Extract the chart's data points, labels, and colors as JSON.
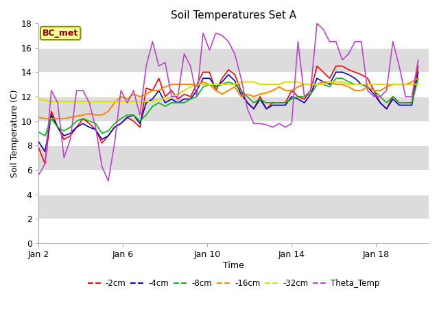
{
  "title": "Soil Temperatures Set A",
  "xlabel": "Time",
  "ylabel": "Soil Temperature (C)",
  "ylim": [
    0,
    18
  ],
  "yticks": [
    0,
    2,
    4,
    6,
    8,
    10,
    12,
    14,
    16,
    18
  ],
  "xtick_labels": [
    "Jan 2",
    "Jan 6",
    "Jan 10",
    "Jan 14",
    "Jan 18"
  ],
  "xtick_positions": [
    1,
    5,
    9,
    13,
    17
  ],
  "annotation_text": "BC_met",
  "annotation_color": "#8B0000",
  "annotation_bg": "#FFFF99",
  "annotation_edge": "#8B8B00",
  "fig_bg": "#FFFFFF",
  "plot_bg_light": "#FFFFFF",
  "plot_bg_dark": "#DCDCDC",
  "series_colors": {
    "-2cm": "#FF0000",
    "-4cm": "#0000CC",
    "-8cm": "#00BB00",
    "-16cm": "#FF8C00",
    "-32cm": "#DDDD00",
    "Theta_Temp": "#BB44CC"
  },
  "time_days": [
    1,
    1.3,
    1.6,
    1.9,
    2.2,
    2.5,
    2.8,
    3.1,
    3.4,
    3.7,
    4.0,
    4.3,
    4.6,
    4.9,
    5.2,
    5.5,
    5.8,
    6.1,
    6.4,
    6.7,
    7.0,
    7.3,
    7.6,
    7.9,
    8.2,
    8.5,
    8.8,
    9.1,
    9.4,
    9.7,
    10.0,
    10.3,
    10.6,
    10.9,
    11.2,
    11.5,
    11.8,
    12.1,
    12.4,
    12.7,
    13.0,
    13.3,
    13.6,
    13.9,
    14.2,
    14.5,
    14.8,
    15.1,
    15.4,
    15.7,
    16.0,
    16.3,
    16.6,
    16.9,
    17.2,
    17.5,
    17.8,
    18.1,
    18.4,
    18.7,
    19.0
  ],
  "cm2": [
    7.8,
    6.5,
    10.8,
    9.5,
    8.5,
    8.8,
    9.5,
    10.2,
    9.8,
    9.3,
    8.2,
    8.8,
    9.5,
    9.8,
    10.3,
    10.0,
    9.5,
    12.7,
    12.5,
    13.5,
    12.0,
    12.5,
    11.8,
    12.2,
    12.0,
    13.0,
    14.0,
    14.0,
    12.5,
    13.5,
    14.2,
    13.8,
    12.5,
    11.5,
    11.0,
    12.0,
    11.0,
    11.5,
    11.5,
    11.5,
    12.5,
    12.0,
    11.8,
    12.5,
    14.5,
    14.0,
    13.5,
    14.5,
    14.5,
    14.2,
    14.0,
    13.8,
    13.5,
    12.5,
    11.5,
    11.0,
    12.0,
    11.5,
    11.5,
    11.5,
    14.5
  ],
  "cm4": [
    8.3,
    7.5,
    10.5,
    9.5,
    8.8,
    9.0,
    9.5,
    9.8,
    9.5,
    9.3,
    8.5,
    8.8,
    9.5,
    9.8,
    10.3,
    10.5,
    9.8,
    11.5,
    11.8,
    12.5,
    11.5,
    11.8,
    11.5,
    11.8,
    11.8,
    12.5,
    13.5,
    13.5,
    12.8,
    13.2,
    13.8,
    13.3,
    12.2,
    11.5,
    11.0,
    11.8,
    11.0,
    11.3,
    11.3,
    11.3,
    12.0,
    11.8,
    11.5,
    12.2,
    13.5,
    13.2,
    13.0,
    14.0,
    14.0,
    13.8,
    13.5,
    13.0,
    12.8,
    12.2,
    11.5,
    11.0,
    11.8,
    11.3,
    11.3,
    11.3,
    14.0
  ],
  "cm8": [
    9.1,
    8.8,
    10.2,
    9.5,
    9.2,
    9.5,
    10.0,
    10.2,
    10.0,
    9.8,
    9.0,
    9.2,
    9.8,
    10.2,
    10.5,
    10.5,
    10.0,
    10.5,
    11.2,
    11.5,
    11.2,
    11.5,
    11.5,
    11.5,
    11.8,
    12.0,
    12.8,
    13.0,
    12.8,
    13.0,
    13.2,
    13.0,
    12.5,
    12.0,
    11.5,
    11.8,
    11.5,
    11.5,
    11.5,
    11.5,
    11.8,
    12.0,
    12.0,
    12.2,
    13.0,
    13.0,
    12.8,
    13.5,
    13.5,
    13.2,
    13.0,
    13.0,
    12.8,
    12.5,
    12.0,
    11.5,
    12.0,
    11.5,
    11.5,
    11.5,
    13.5
  ],
  "cm16": [
    10.3,
    10.2,
    10.2,
    10.2,
    10.2,
    10.3,
    10.4,
    10.5,
    10.6,
    10.5,
    10.5,
    10.8,
    11.5,
    12.0,
    11.8,
    12.2,
    12.0,
    12.2,
    12.5,
    12.5,
    12.8,
    13.0,
    13.0,
    13.0,
    13.0,
    13.0,
    13.2,
    13.0,
    12.5,
    12.2,
    12.5,
    12.8,
    12.0,
    12.2,
    12.0,
    12.2,
    12.3,
    12.5,
    12.8,
    12.5,
    12.5,
    12.8,
    13.0,
    13.0,
    13.0,
    13.2,
    13.2,
    13.0,
    13.0,
    12.8,
    12.5,
    12.5,
    12.8,
    12.5,
    12.5,
    12.8,
    13.0,
    13.0,
    13.0,
    13.2,
    13.5
  ],
  "cm32": [
    11.8,
    11.7,
    11.6,
    11.6,
    11.6,
    11.6,
    11.6,
    11.6,
    11.6,
    11.6,
    11.6,
    11.6,
    11.6,
    11.6,
    11.6,
    11.6,
    11.6,
    11.6,
    11.6,
    11.8,
    11.8,
    12.0,
    12.2,
    12.5,
    12.8,
    13.0,
    13.0,
    13.0,
    13.0,
    13.0,
    13.0,
    13.0,
    13.2,
    13.2,
    13.2,
    13.0,
    13.0,
    13.0,
    13.0,
    13.2,
    13.2,
    13.2,
    13.0,
    13.0,
    13.0,
    13.0,
    13.2,
    13.2,
    13.2,
    13.0,
    13.0,
    13.0,
    13.0,
    13.0,
    13.0,
    13.0,
    13.0,
    13.0,
    13.0,
    13.0,
    13.0
  ],
  "theta": [
    5.6,
    6.5,
    12.5,
    11.5,
    7.0,
    8.5,
    12.5,
    12.5,
    11.5,
    9.5,
    6.3,
    5.1,
    8.2,
    12.5,
    11.5,
    12.5,
    10.5,
    14.5,
    16.5,
    14.5,
    14.8,
    12.0,
    12.0,
    15.5,
    14.5,
    12.0,
    17.2,
    15.8,
    17.2,
    17.0,
    16.5,
    15.5,
    13.5,
    11.0,
    9.8,
    9.8,
    9.7,
    9.5,
    9.8,
    9.5,
    9.8,
    16.5,
    12.0,
    12.5,
    18.0,
    17.5,
    16.5,
    16.5,
    15.0,
    15.5,
    16.5,
    16.5,
    12.5,
    12.0,
    12.0,
    12.5,
    16.5,
    14.5,
    12.0,
    12.0,
    15.0
  ]
}
